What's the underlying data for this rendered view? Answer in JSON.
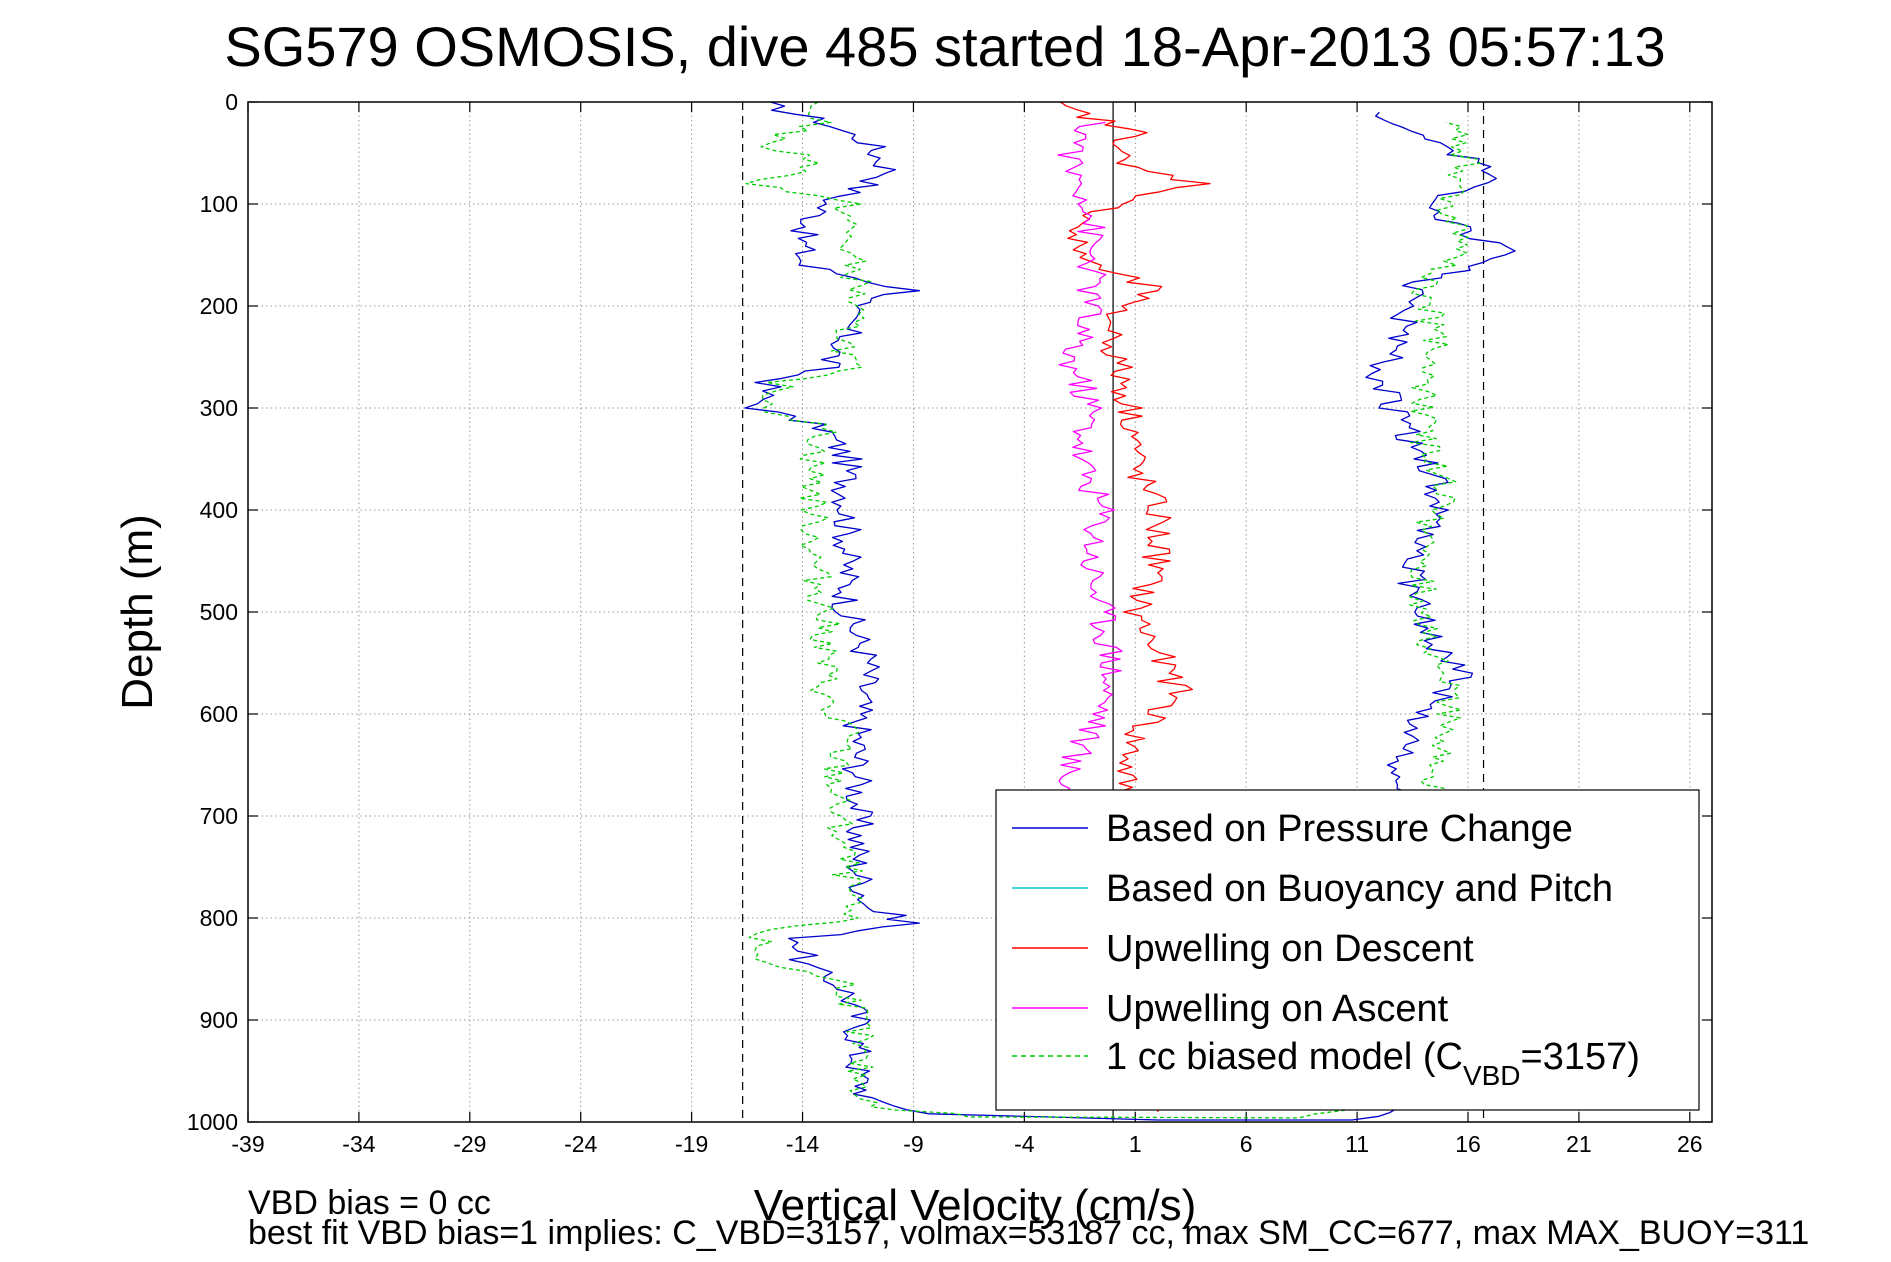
{
  "chart_data": {
    "type": "line",
    "title": "SG579 OSMOSIS, dive 485 started 18-Apr-2013 05:57:13",
    "xlabel": "Vertical Velocity (cm/s)",
    "ylabel": "Depth (m)",
    "xlim": [
      -39,
      27
    ],
    "ylim": [
      0,
      1000
    ],
    "y_reversed": true,
    "grid": true,
    "xticks": [
      -39,
      -34,
      -29,
      -24,
      -19,
      -14,
      -9,
      -4,
      1,
      6,
      11,
      16,
      21,
      26
    ],
    "yticks": [
      0,
      100,
      200,
      300,
      400,
      500,
      600,
      700,
      800,
      900,
      1000
    ],
    "reference_lines": [
      {
        "x": -16.7,
        "style": "dashed",
        "color": "#000000"
      },
      {
        "x": 16.7,
        "style": "dashed",
        "color": "#000000"
      },
      {
        "x": 0,
        "style": "solid",
        "color": "#000000"
      }
    ],
    "legend_position": "bottom-right",
    "series": [
      {
        "name": "Based on Pressure Change",
        "color": "#0000cc",
        "style": "solid",
        "points": [
          {
            "depth": 0,
            "v": -16
          },
          {
            "depth": 20,
            "v": -13
          },
          {
            "depth": 40,
            "v": -11
          },
          {
            "depth": 70,
            "v": -10
          },
          {
            "depth": 100,
            "v": -13
          },
          {
            "depth": 130,
            "v": -14
          },
          {
            "depth": 160,
            "v": -14
          },
          {
            "depth": 185,
            "v": -9
          },
          {
            "depth": 200,
            "v": -12
          },
          {
            "depth": 230,
            "v": -12
          },
          {
            "depth": 260,
            "v": -13
          },
          {
            "depth": 275,
            "v": -15.5
          },
          {
            "depth": 300,
            "v": -16
          },
          {
            "depth": 320,
            "v": -13
          },
          {
            "depth": 350,
            "v": -12
          },
          {
            "depth": 400,
            "v": -12
          },
          {
            "depth": 450,
            "v": -12
          },
          {
            "depth": 500,
            "v": -12
          },
          {
            "depth": 550,
            "v": -11
          },
          {
            "depth": 600,
            "v": -11.5
          },
          {
            "depth": 650,
            "v": -11.5
          },
          {
            "depth": 700,
            "v": -11.5
          },
          {
            "depth": 750,
            "v": -11.5
          },
          {
            "depth": 790,
            "v": -11
          },
          {
            "depth": 805,
            "v": -9
          },
          {
            "depth": 820,
            "v": -14
          },
          {
            "depth": 845,
            "v": -14
          },
          {
            "depth": 870,
            "v": -12
          },
          {
            "depth": 900,
            "v": -11.5
          },
          {
            "depth": 950,
            "v": -11.5
          },
          {
            "depth": 980,
            "v": -11
          },
          {
            "depth": 992,
            "v": -8
          },
          {
            "depth": 998,
            "v": 2
          },
          {
            "depth": 998,
            "v": 11
          },
          {
            "depth": 980,
            "v": 14
          },
          {
            "depth": 950,
            "v": 14
          },
          {
            "depth": 900,
            "v": 14
          },
          {
            "depth": 850,
            "v": 14
          },
          {
            "depth": 800,
            "v": 14
          },
          {
            "depth": 750,
            "v": 14
          },
          {
            "depth": 700,
            "v": 14
          },
          {
            "depth": 650,
            "v": 13
          },
          {
            "depth": 610,
            "v": 13.5
          },
          {
            "depth": 560,
            "v": 16
          },
          {
            "depth": 520,
            "v": 14
          },
          {
            "depth": 480,
            "v": 13.5
          },
          {
            "depth": 440,
            "v": 13.5
          },
          {
            "depth": 400,
            "v": 15
          },
          {
            "depth": 350,
            "v": 14
          },
          {
            "depth": 300,
            "v": 12.5
          },
          {
            "depth": 270,
            "v": 12
          },
          {
            "depth": 220,
            "v": 13
          },
          {
            "depth": 180,
            "v": 13.5
          },
          {
            "depth": 150,
            "v": 18
          },
          {
            "depth": 130,
            "v": 16
          },
          {
            "depth": 100,
            "v": 14
          },
          {
            "depth": 75,
            "v": 17
          },
          {
            "depth": 40,
            "v": 15
          },
          {
            "depth": 10,
            "v": 12
          }
        ]
      },
      {
        "name": "Based on Buoyancy and Pitch",
        "color": "#00cccc",
        "style": "solid",
        "points": []
      },
      {
        "name": "Upwelling on Descent",
        "color": "#ff0000",
        "style": "solid",
        "points": [
          {
            "depth": 0,
            "v": -3
          },
          {
            "depth": 30,
            "v": 1
          },
          {
            "depth": 60,
            "v": 0
          },
          {
            "depth": 80,
            "v": 4
          },
          {
            "depth": 100,
            "v": 0
          },
          {
            "depth": 130,
            "v": -2
          },
          {
            "depth": 160,
            "v": -1
          },
          {
            "depth": 185,
            "v": 2
          },
          {
            "depth": 200,
            "v": 0
          },
          {
            "depth": 240,
            "v": 0
          },
          {
            "depth": 280,
            "v": 0.5
          },
          {
            "depth": 320,
            "v": 1
          },
          {
            "depth": 360,
            "v": 1
          },
          {
            "depth": 400,
            "v": 2
          },
          {
            "depth": 450,
            "v": 2
          },
          {
            "depth": 500,
            "v": 1
          },
          {
            "depth": 540,
            "v": 2
          },
          {
            "depth": 580,
            "v": 3
          },
          {
            "depth": 620,
            "v": 1
          },
          {
            "depth": 660,
            "v": 0.5
          },
          {
            "depth": 700,
            "v": 0.5
          },
          {
            "depth": 800,
            "v": 0.5
          },
          {
            "depth": 900,
            "v": 0.5
          },
          {
            "depth": 975,
            "v": 1
          },
          {
            "depth": 990,
            "v": 2
          }
        ]
      },
      {
        "name": "Upwelling on Ascent",
        "color": "#ff00ff",
        "style": "solid",
        "points": [
          {
            "depth": 20,
            "v": -1
          },
          {
            "depth": 60,
            "v": -2
          },
          {
            "depth": 100,
            "v": -1
          },
          {
            "depth": 150,
            "v": -1
          },
          {
            "depth": 200,
            "v": -1
          },
          {
            "depth": 250,
            "v": -2
          },
          {
            "depth": 300,
            "v": -1
          },
          {
            "depth": 350,
            "v": -1.5
          },
          {
            "depth": 400,
            "v": -0.5
          },
          {
            "depth": 450,
            "v": -1
          },
          {
            "depth": 500,
            "v": -0.5
          },
          {
            "depth": 550,
            "v": 0
          },
          {
            "depth": 600,
            "v": -0.5
          },
          {
            "depth": 650,
            "v": -2
          },
          {
            "depth": 700,
            "v": -2
          }
        ]
      },
      {
        "name": "1 cc biased model (C_VBD=3157)",
        "color": "#00cc00",
        "style": "dashed",
        "points": [
          {
            "depth": 0,
            "v": -14
          },
          {
            "depth": 20,
            "v": -13
          },
          {
            "depth": 40,
            "v": -16
          },
          {
            "depth": 60,
            "v": -13
          },
          {
            "depth": 80,
            "v": -16
          },
          {
            "depth": 100,
            "v": -12
          },
          {
            "depth": 140,
            "v": -12
          },
          {
            "depth": 180,
            "v": -11.5
          },
          {
            "depth": 220,
            "v": -12
          },
          {
            "depth": 260,
            "v": -12
          },
          {
            "depth": 275,
            "v": -15
          },
          {
            "depth": 300,
            "v": -15.5
          },
          {
            "depth": 320,
            "v": -13
          },
          {
            "depth": 350,
            "v": -13.5
          },
          {
            "depth": 400,
            "v": -13.5
          },
          {
            "depth": 450,
            "v": -13.5
          },
          {
            "depth": 500,
            "v": -13
          },
          {
            "depth": 550,
            "v": -13
          },
          {
            "depth": 600,
            "v": -13
          },
          {
            "depth": 610,
            "v": -12
          },
          {
            "depth": 650,
            "v": -12.5
          },
          {
            "depth": 700,
            "v": -12.5
          },
          {
            "depth": 750,
            "v": -12
          },
          {
            "depth": 800,
            "v": -12
          },
          {
            "depth": 815,
            "v": -16
          },
          {
            "depth": 840,
            "v": -16
          },
          {
            "depth": 865,
            "v": -12
          },
          {
            "depth": 900,
            "v": -11.5
          },
          {
            "depth": 950,
            "v": -11.5
          },
          {
            "depth": 985,
            "v": -11
          },
          {
            "depth": 995,
            "v": -6
          },
          {
            "depth": 996,
            "v": 8
          },
          {
            "depth": 985,
            "v": 12
          },
          {
            "depth": 950,
            "v": 14.5
          },
          {
            "depth": 900,
            "v": 14.5
          },
          {
            "depth": 850,
            "v": 14.5
          },
          {
            "depth": 800,
            "v": 14.5
          },
          {
            "depth": 750,
            "v": 14.5
          },
          {
            "depth": 700,
            "v": 14.5
          },
          {
            "depth": 650,
            "v": 14.5
          },
          {
            "depth": 600,
            "v": 15
          },
          {
            "depth": 560,
            "v": 15
          },
          {
            "depth": 520,
            "v": 14
          },
          {
            "depth": 470,
            "v": 14
          },
          {
            "depth": 420,
            "v": 14
          },
          {
            "depth": 380,
            "v": 15
          },
          {
            "depth": 330,
            "v": 14
          },
          {
            "depth": 280,
            "v": 14
          },
          {
            "depth": 230,
            "v": 14.5
          },
          {
            "depth": 180,
            "v": 14
          },
          {
            "depth": 140,
            "v": 16
          },
          {
            "depth": 110,
            "v": 15
          },
          {
            "depth": 60,
            "v": 16
          },
          {
            "depth": 20,
            "v": 15
          }
        ]
      }
    ],
    "footer_lines": [
      "VBD bias = 0 cc",
      "best fit VBD bias=1 implies: C_VBD=3157, volmax=53187 cc, max SM_CC=677, max MAX_BUOY=311"
    ]
  }
}
